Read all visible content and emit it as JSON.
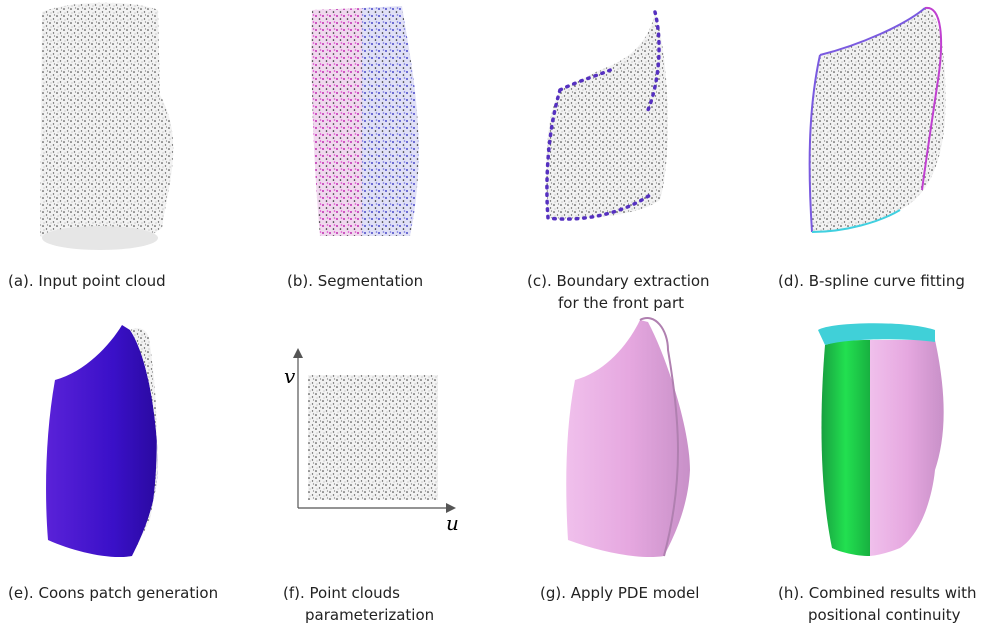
{
  "panels": [
    {
      "caption": [
        "(a). Input point cloud"
      ]
    },
    {
      "caption": [
        "(b). Segmentation"
      ]
    },
    {
      "caption": [
        "(c). Boundary extraction",
        "for the front part"
      ]
    },
    {
      "caption": [
        "(d). B-spline curve fitting"
      ]
    },
    {
      "caption": [
        "(e). Coons patch generation"
      ]
    },
    {
      "caption": [
        "(f). Point clouds",
        "parameterization"
      ],
      "axis_labels": {
        "x": "u",
        "y": "v"
      }
    },
    {
      "caption": [
        "(g). Apply PDE model"
      ]
    },
    {
      "caption": [
        "(h). Combined results with",
        "positional continuity"
      ]
    }
  ]
}
